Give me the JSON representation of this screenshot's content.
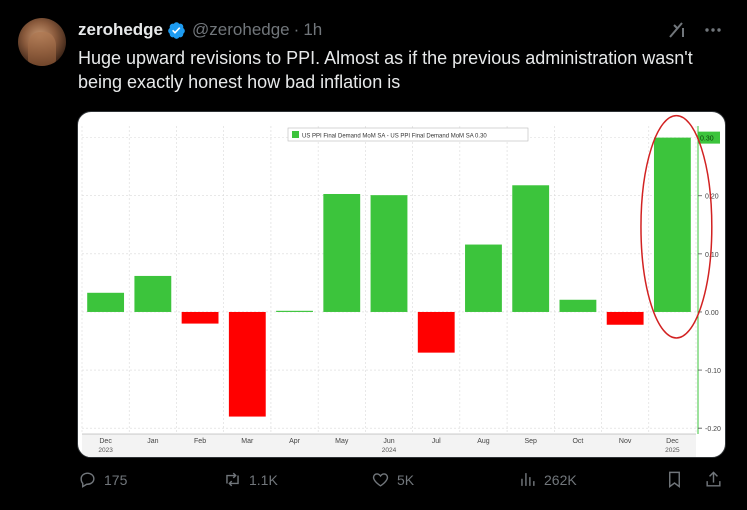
{
  "tweet": {
    "display_name": "zerohedge",
    "handle": "@zerohedge",
    "dot": "·",
    "time": "1h",
    "text": "Huge upward revisions to PPI. Almost as if the previous administration wasn't being exactly honest how bad inflation is",
    "verified_icon": "verified-badge-icon",
    "grok_icon": "grok-icon",
    "more_icon": "more-icon"
  },
  "actions": {
    "reply_count": "175",
    "retweet_count": "1.1K",
    "like_count": "5K",
    "view_count": "262K"
  },
  "colors": {
    "background": "#000000",
    "text_primary": "#e7e9ea",
    "text_secondary": "#71767b",
    "verified_blue": "#1d9bf0",
    "bar_positive": "#3cc43c",
    "bar_negative": "#ff0000",
    "annotation_circle": "#d22222"
  },
  "chart_data": {
    "type": "bar",
    "legend": "US PPI Final Demand MoM SA - US PPI Final Demand MoM SA  0.30",
    "categories": [
      "Dec",
      "Jan",
      "Feb",
      "Mar",
      "Apr",
      "May",
      "Jun",
      "Jul",
      "Aug",
      "Sep",
      "Oct",
      "Nov",
      "Dec"
    ],
    "year_labels": [
      {
        "label": "2023",
        "category_index": 0
      },
      {
        "label": "2024",
        "category_index": 6
      },
      {
        "label": "2025",
        "category_index": 12
      }
    ],
    "values": [
      0.033,
      0.062,
      -0.02,
      -0.18,
      0.002,
      0.203,
      0.201,
      -0.07,
      0.116,
      0.218,
      0.021,
      -0.022,
      0.3
    ],
    "ylim": [
      -0.21,
      0.32
    ],
    "yticks": [
      "0.30",
      "0.20",
      "0.10",
      "0.00",
      "-0.10",
      "-0.20"
    ],
    "ytick_values": [
      0.3,
      0.2,
      0.1,
      0.0,
      -0.1,
      -0.2
    ],
    "last_value_label": "0.30",
    "grid": true,
    "highlighted_category_index": 12
  }
}
